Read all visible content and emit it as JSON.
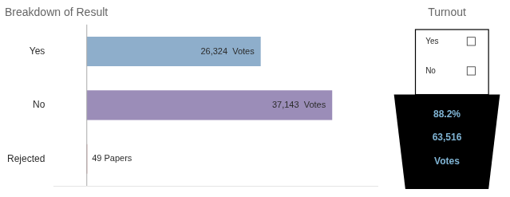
{
  "chart_data": {
    "type": "bar",
    "orientation": "horizontal",
    "title": "Breakdown of Result",
    "categories": [
      "Yes",
      "No",
      "Rejected"
    ],
    "values": [
      26324,
      37143,
      49
    ],
    "value_labels": [
      "26,324  Votes",
      "37,143  Votes",
      "49 Papers"
    ],
    "colors": [
      "#8eaecb",
      "#9b8db8",
      "#8b1a1a"
    ],
    "xlim": [
      -5000,
      44000
    ],
    "data_labels": true,
    "tick_labels": "y",
    "grid": false,
    "annotations": [
      "Turnout",
      "Yes",
      "No",
      "88.2%",
      "63,516",
      "Votes"
    ]
  }
}
